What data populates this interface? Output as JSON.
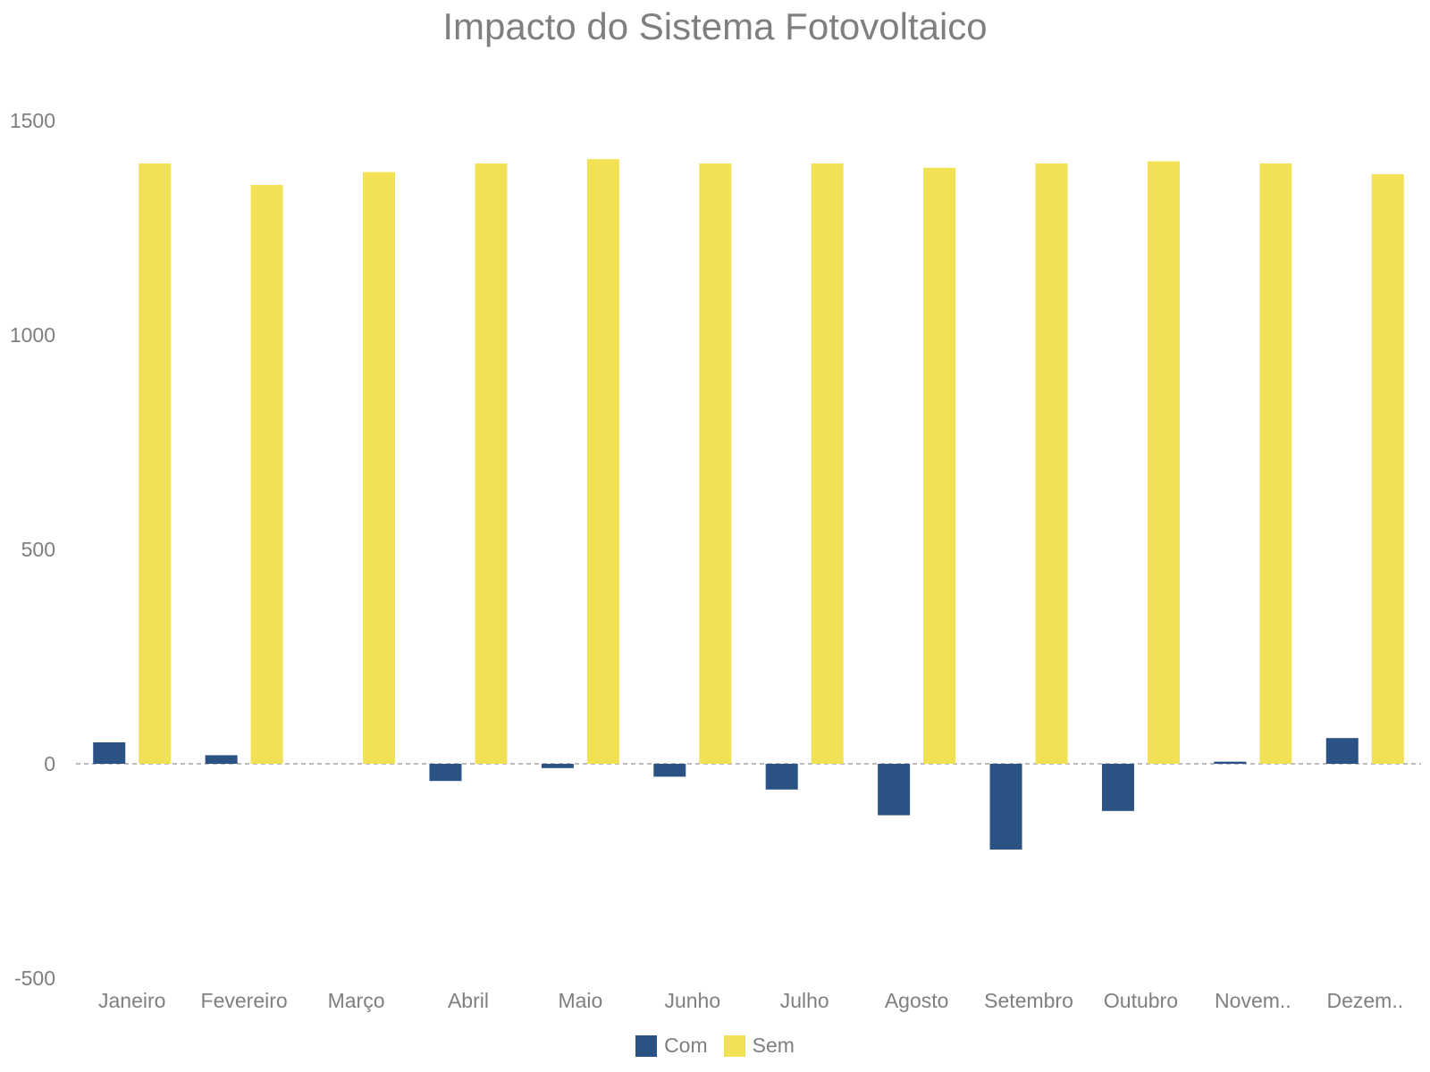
{
  "chart_data": {
    "type": "bar",
    "title": "Impacto do Sistema Fotovoltaico",
    "xlabel": "",
    "ylabel": "",
    "categories": [
      "Janeiro",
      "Fevereiro",
      "Março",
      "Abril",
      "Maio",
      "Junho",
      "Julho",
      "Agosto",
      "Setembro",
      "Outubro",
      "Novem..",
      "Dezem.."
    ],
    "series": [
      {
        "name": "Com",
        "color": "#2a5284",
        "values": [
          50,
          20,
          0,
          -40,
          -10,
          -30,
          -60,
          -120,
          -200,
          -110,
          5,
          60
        ]
      },
      {
        "name": "Sem",
        "color": "#f2e155",
        "values": [
          1400,
          1350,
          1380,
          1400,
          1410,
          1400,
          1400,
          1390,
          1400,
          1405,
          1400,
          1375
        ]
      }
    ],
    "ylim": [
      -500,
      1600
    ],
    "yticks": [
      1500,
      1000,
      500,
      0,
      -500
    ],
    "grid": false,
    "zero_line": "dashed",
    "legend_position": "bottom"
  }
}
